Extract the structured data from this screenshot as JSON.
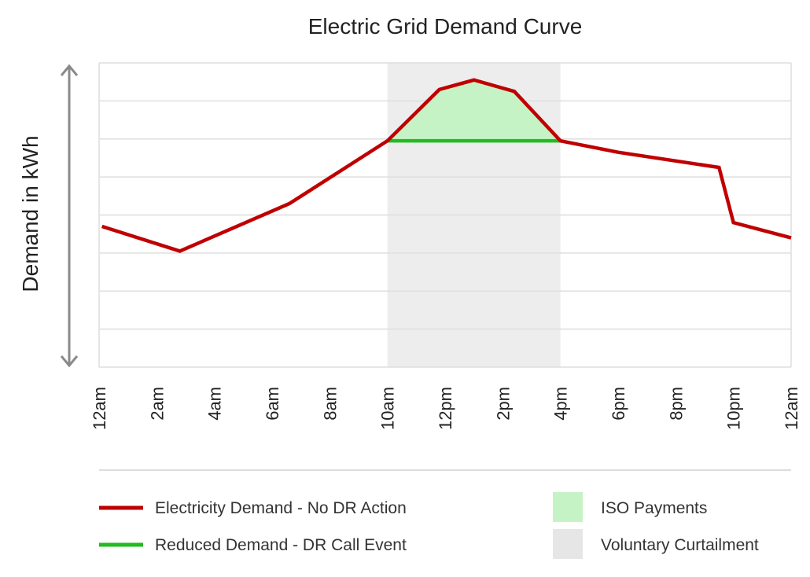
{
  "chart_data": {
    "type": "line",
    "title": "Electric Grid Demand Curve",
    "xlabel": "",
    "ylabel": "Demand in kWh",
    "x_tick_labels": [
      "12am",
      "2am",
      "4am",
      "6am",
      "8am",
      "10am",
      "12pm",
      "2pm",
      "4pm",
      "6pm",
      "8pm",
      "10pm",
      "12am"
    ],
    "x_hours": [
      0,
      2,
      4,
      6,
      8,
      10,
      12,
      14,
      16,
      18,
      20,
      22,
      24
    ],
    "xlim": [
      0,
      24
    ],
    "ylim": [
      0,
      8
    ],
    "y_gridlines": [
      0,
      1,
      2,
      3,
      4,
      5,
      6,
      7,
      8
    ],
    "y_tick_labels_shown": false,
    "grid": true,
    "series": [
      {
        "name": "Electricity Demand - No DR Action",
        "color": "#c00000",
        "points": [
          [
            0.1,
            3.7
          ],
          [
            2.8,
            3.05
          ],
          [
            6.6,
            4.3
          ],
          [
            10.0,
            5.95
          ],
          [
            11.8,
            7.3
          ],
          [
            13.0,
            7.55
          ],
          [
            14.4,
            7.25
          ],
          [
            16.0,
            5.95
          ],
          [
            18.0,
            5.65
          ],
          [
            21.5,
            5.25
          ],
          [
            22.0,
            3.8
          ],
          [
            24.0,
            3.4
          ]
        ]
      },
      {
        "name": "Reduced Demand - DR Call Event",
        "color": "#22bb22",
        "points": [
          [
            10.0,
            5.95
          ],
          [
            16.0,
            5.95
          ]
        ]
      }
    ],
    "shaded_regions": [
      {
        "name": "Voluntary Curtailment",
        "color": "#ededed",
        "x_range": [
          10,
          16
        ]
      }
    ],
    "filled_areas": [
      {
        "name": "ISO Payments",
        "color": "#c6f3c6",
        "between": "Electricity Demand - No DR Action and Reduced Demand - DR Call Event",
        "x_range": [
          10,
          16
        ]
      }
    ],
    "legend_placement": "bottom",
    "legend": [
      {
        "label": "Electricity Demand - No DR Action",
        "swatch": "line",
        "color": "#c00000"
      },
      {
        "label": "ISO Payments",
        "swatch": "box",
        "color": "#c6f3c6"
      },
      {
        "label": "Reduced Demand - DR Call Event",
        "swatch": "line",
        "color": "#22bb22"
      },
      {
        "label": "Voluntary Curtailment",
        "swatch": "box",
        "color": "#e6e6e6"
      }
    ]
  }
}
